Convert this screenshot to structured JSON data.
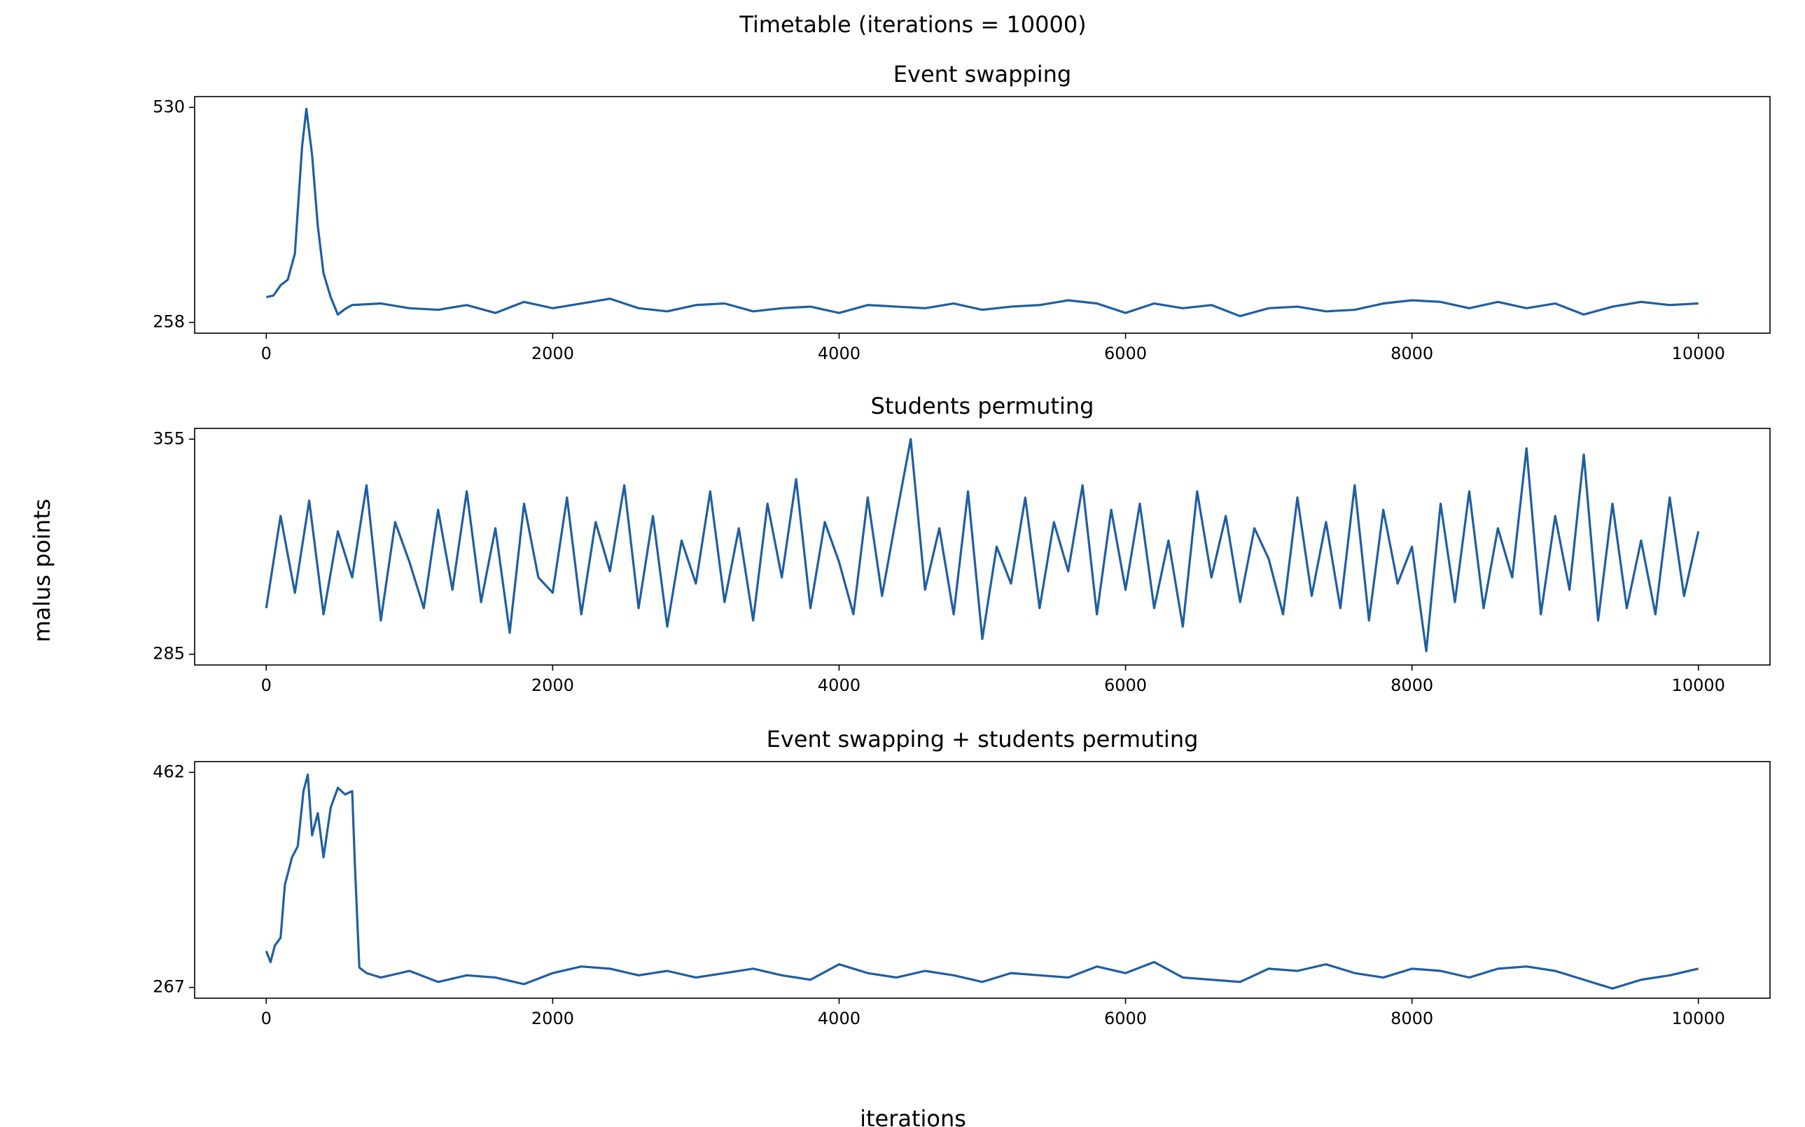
{
  "title": "Timetable (iterations = 10000)",
  "x_label": "iterations",
  "y_label": "malus points",
  "chart_data": [
    {
      "type": "line",
      "title": "Event swapping",
      "color": "#1f5fa0",
      "x": [
        0,
        50,
        100,
        150,
        200,
        250,
        280,
        320,
        360,
        400,
        450,
        500,
        550,
        600,
        800,
        1000,
        1200,
        1400,
        1600,
        1800,
        2000,
        2200,
        2400,
        2600,
        2800,
        3000,
        3200,
        3400,
        3600,
        3800,
        4000,
        4200,
        4400,
        4600,
        4800,
        5000,
        5200,
        5400,
        5600,
        5800,
        6000,
        6200,
        6400,
        6600,
        6800,
        7000,
        7200,
        7400,
        7600,
        7800,
        8000,
        8200,
        8400,
        8600,
        8800,
        9000,
        9200,
        9400,
        9600,
        9800,
        10000
      ],
      "values": [
        290,
        292,
        305,
        312,
        345,
        480,
        528,
        470,
        380,
        320,
        290,
        268,
        275,
        280,
        282,
        276,
        274,
        280,
        270,
        284,
        276,
        282,
        288,
        276,
        272,
        280,
        282,
        272,
        276,
        278,
        270,
        280,
        278,
        276,
        282,
        274,
        278,
        280,
        286,
        282,
        270,
        282,
        276,
        280,
        266,
        276,
        278,
        272,
        274,
        282,
        286,
        284,
        276,
        284,
        276,
        282,
        268,
        278,
        284,
        280,
        282
      ],
      "xlim": [
        -500,
        10500
      ],
      "ylim": [
        244.4,
        543.6
      ],
      "xticks": [
        0,
        2000,
        4000,
        6000,
        8000,
        10000
      ],
      "yticks": [
        258,
        530
      ]
    },
    {
      "type": "line",
      "title": "Students permuting",
      "color": "#1f5fa0",
      "x": [
        0,
        100,
        200,
        300,
        400,
        500,
        600,
        700,
        800,
        900,
        1000,
        1100,
        1200,
        1300,
        1400,
        1500,
        1600,
        1700,
        1800,
        1900,
        2000,
        2100,
        2200,
        2300,
        2400,
        2500,
        2600,
        2700,
        2800,
        2900,
        3000,
        3100,
        3200,
        3300,
        3400,
        3500,
        3600,
        3700,
        3800,
        3900,
        4000,
        4100,
        4200,
        4300,
        4400,
        4500,
        4600,
        4700,
        4800,
        4900,
        5000,
        5100,
        5200,
        5300,
        5400,
        5500,
        5600,
        5700,
        5800,
        5900,
        6000,
        6100,
        6200,
        6300,
        6400,
        6500,
        6600,
        6700,
        6800,
        6900,
        7000,
        7100,
        7200,
        7300,
        7400,
        7500,
        7600,
        7700,
        7800,
        7900,
        8000,
        8100,
        8200,
        8300,
        8400,
        8500,
        8600,
        8700,
        8800,
        8900,
        9000,
        9100,
        9200,
        9300,
        9400,
        9500,
        9600,
        9700,
        9800,
        9900,
        10000
      ],
      "values": [
        300,
        330,
        305,
        335,
        298,
        325,
        310,
        340,
        296,
        328,
        315,
        300,
        332,
        306,
        338,
        302,
        326,
        292,
        334,
        310,
        305,
        336,
        298,
        328,
        312,
        340,
        300,
        330,
        294,
        322,
        308,
        338,
        302,
        326,
        296,
        334,
        310,
        342,
        300,
        328,
        315,
        298,
        336,
        304,
        330,
        355,
        306,
        326,
        298,
        338,
        290,
        320,
        308,
        336,
        300,
        328,
        312,
        340,
        298,
        332,
        306,
        334,
        300,
        322,
        294,
        338,
        310,
        330,
        302,
        326,
        316,
        298,
        336,
        304,
        328,
        300,
        340,
        296,
        332,
        308,
        320,
        286,
        334,
        302,
        338,
        300,
        326,
        310,
        352,
        298,
        330,
        306,
        350,
        296,
        334,
        300,
        322,
        298,
        336,
        304,
        325
      ],
      "xlim": [
        -500,
        10500
      ],
      "ylim": [
        281.5,
        358.5
      ],
      "xticks": [
        0,
        2000,
        4000,
        6000,
        8000,
        10000
      ],
      "yticks": [
        285,
        355
      ]
    },
    {
      "type": "line",
      "title": "Event swapping + students permuting",
      "color": "#1f5fa0",
      "x": [
        0,
        30,
        60,
        100,
        130,
        180,
        220,
        260,
        290,
        320,
        360,
        400,
        450,
        500,
        550,
        600,
        620,
        650,
        700,
        800,
        1000,
        1200,
        1400,
        1600,
        1800,
        2000,
        2200,
        2400,
        2600,
        2800,
        3000,
        3200,
        3400,
        3600,
        3800,
        4000,
        4200,
        4400,
        4600,
        4800,
        5000,
        5200,
        5400,
        5600,
        5800,
        6000,
        6200,
        6400,
        6600,
        6800,
        7000,
        7200,
        7400,
        7600,
        7800,
        8000,
        8200,
        8400,
        8600,
        8800,
        9000,
        9200,
        9400,
        9600,
        9800,
        10000
      ],
      "values": [
        300,
        290,
        305,
        312,
        360,
        385,
        395,
        445,
        460,
        405,
        425,
        385,
        430,
        448,
        442,
        445,
        375,
        285,
        280,
        276,
        282,
        272,
        278,
        276,
        270,
        280,
        286,
        284,
        278,
        282,
        276,
        280,
        284,
        278,
        274,
        288,
        280,
        276,
        282,
        278,
        272,
        280,
        278,
        276,
        286,
        280,
        290,
        276,
        274,
        272,
        284,
        282,
        288,
        280,
        276,
        284,
        282,
        276,
        284,
        286,
        282,
        274,
        266,
        274,
        278,
        284
      ],
      "xlim": [
        -500,
        10500
      ],
      "ylim": [
        257.25,
        471.75
      ],
      "xticks": [
        0,
        2000,
        4000,
        6000,
        8000,
        10000
      ],
      "yticks": [
        267,
        462
      ]
    }
  ]
}
